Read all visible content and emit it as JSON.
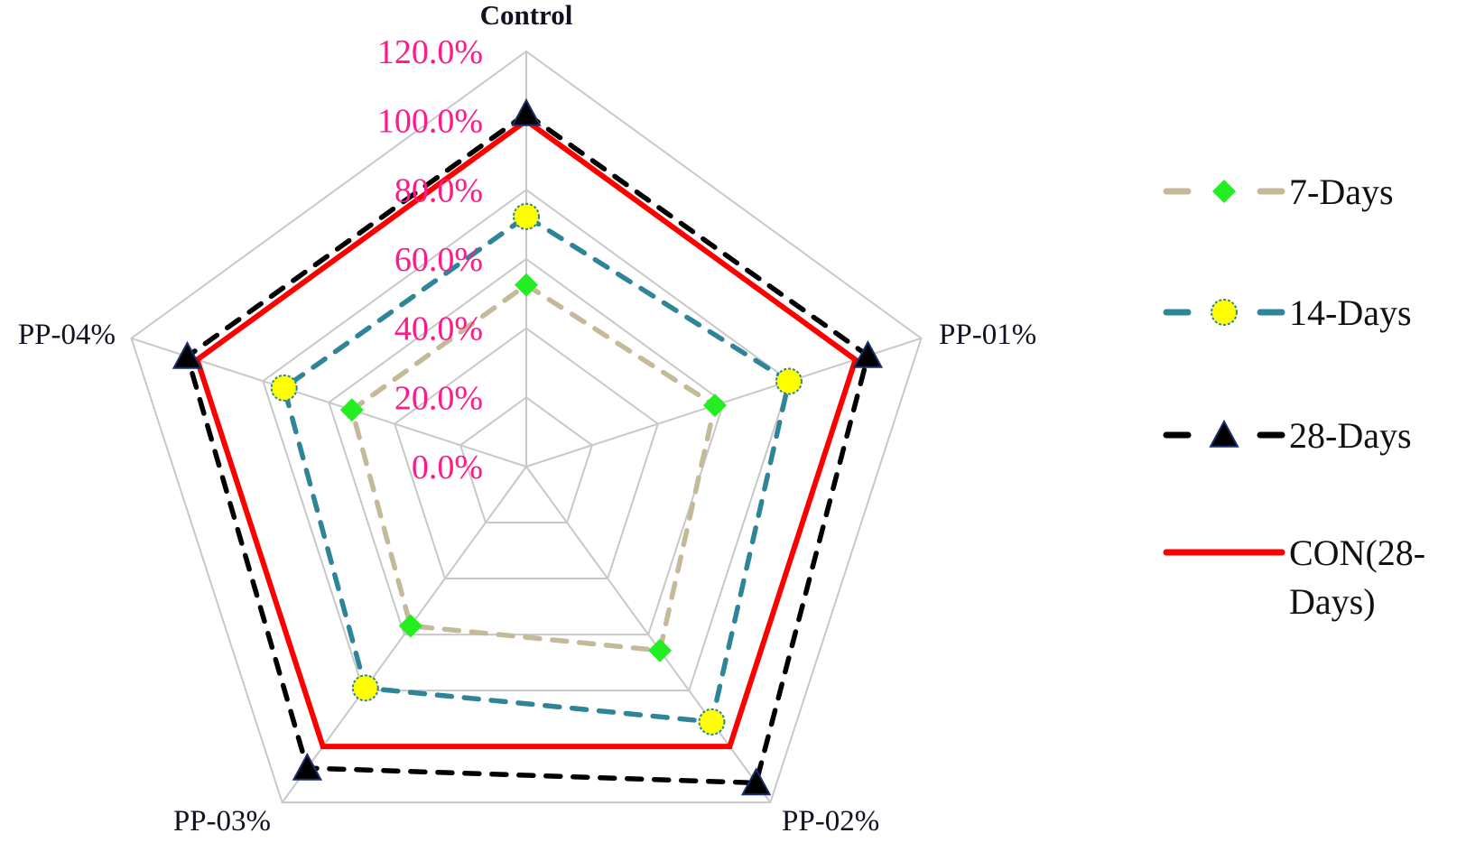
{
  "chart_data": {
    "type": "radar",
    "title": "",
    "categories": [
      "Control",
      "PP-01%",
      "PP-02%",
      "PP-03%",
      "PP-04%"
    ],
    "radial_axis": {
      "min": 0,
      "max": 120,
      "step": 20,
      "tick_labels": [
        "0.0%",
        "20.0%",
        "40.0%",
        "60.0%",
        "80.0%",
        "100.0%",
        "120.0%"
      ],
      "tick_color": "#ff1a8c",
      "grid": true,
      "grid_color": "#c8c8c8"
    },
    "series": [
      {
        "name": "7-Days",
        "values": [
          52.5,
          57.3,
          65.7,
          56.9,
          53.0
        ],
        "line_color": "#c4b998",
        "line_style": "dashed",
        "marker": "diamond",
        "marker_color": "#22ee22"
      },
      {
        "name": "14-Days",
        "values": [
          72.3,
          79.8,
          91.2,
          79.1,
          73.6
        ],
        "line_color": "#2e8598",
        "line_style": "dashed",
        "marker": "circle",
        "marker_color": "#ffff00"
      },
      {
        "name": "28-Days",
        "values": [
          102.0,
          103.8,
          113.0,
          107.7,
          103.0
        ],
        "line_color": "#000000",
        "line_style": "dashed",
        "marker": "triangle",
        "marker_color": "#000000"
      },
      {
        "name": "CON(28-Days)",
        "values": [
          100.0,
          100.0,
          100.0,
          100.0,
          100.0
        ],
        "line_color": "#ff0000",
        "line_style": "solid",
        "marker": "none",
        "marker_color": ""
      }
    ],
    "legend": {
      "position": "right",
      "entries": [
        "7-Days",
        "14-Days",
        "28-Days",
        "CON(28-Days)"
      ],
      "wrapped_lines": {
        "CON(28-Days)": [
          "CON(28-",
          "Days)"
        ]
      }
    }
  }
}
